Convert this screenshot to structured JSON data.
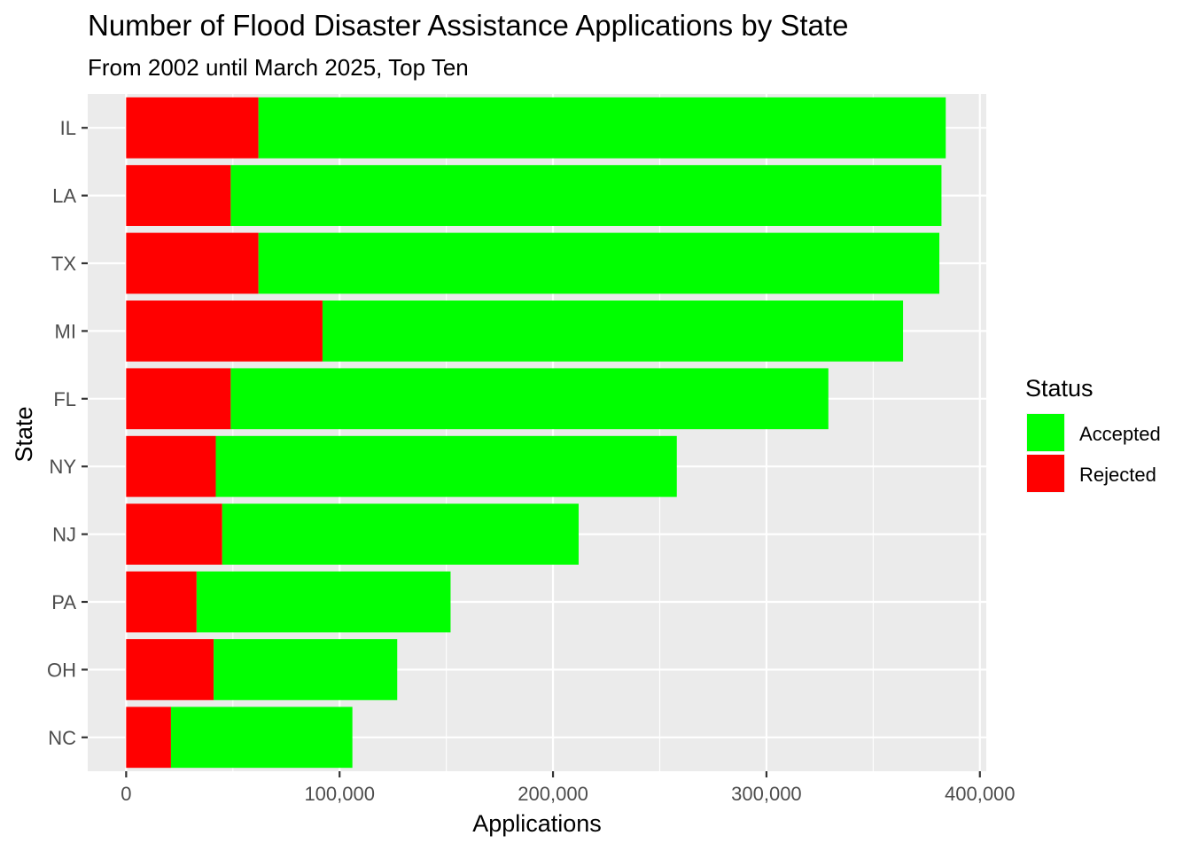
{
  "chart_data": {
    "type": "bar",
    "orientation": "horizontal",
    "stacked": true,
    "title": "Number of Flood Disaster Assistance Applications by State",
    "subtitle": "From 2002 until March 2025, Top Ten",
    "xlabel": "Applications",
    "ylabel": "State",
    "xlim": [
      -18000,
      403000
    ],
    "x_ticks": [
      0,
      100000,
      200000,
      300000,
      400000
    ],
    "x_tick_labels": [
      "0",
      "100,000",
      "200,000",
      "300,000",
      "400,000"
    ],
    "categories": [
      "IL",
      "LA",
      "TX",
      "MI",
      "FL",
      "NY",
      "NJ",
      "PA",
      "OH",
      "NC"
    ],
    "series": [
      {
        "name": "Rejected",
        "color": "#ff0000",
        "values": [
          62000,
          49000,
          62000,
          92000,
          49000,
          42000,
          45000,
          33000,
          41000,
          21000
        ]
      },
      {
        "name": "Accepted",
        "color": "#00ff00",
        "values": [
          322000,
          333000,
          319000,
          272000,
          280000,
          216000,
          167000,
          119000,
          86000,
          85000
        ]
      }
    ],
    "legend": {
      "title": "Status",
      "position": "right",
      "entries": [
        {
          "label": "Accepted",
          "color": "#00ff00"
        },
        {
          "label": "Rejected",
          "color": "#ff0000"
        }
      ]
    },
    "panel_background": "#ebebeb",
    "grid": true
  }
}
